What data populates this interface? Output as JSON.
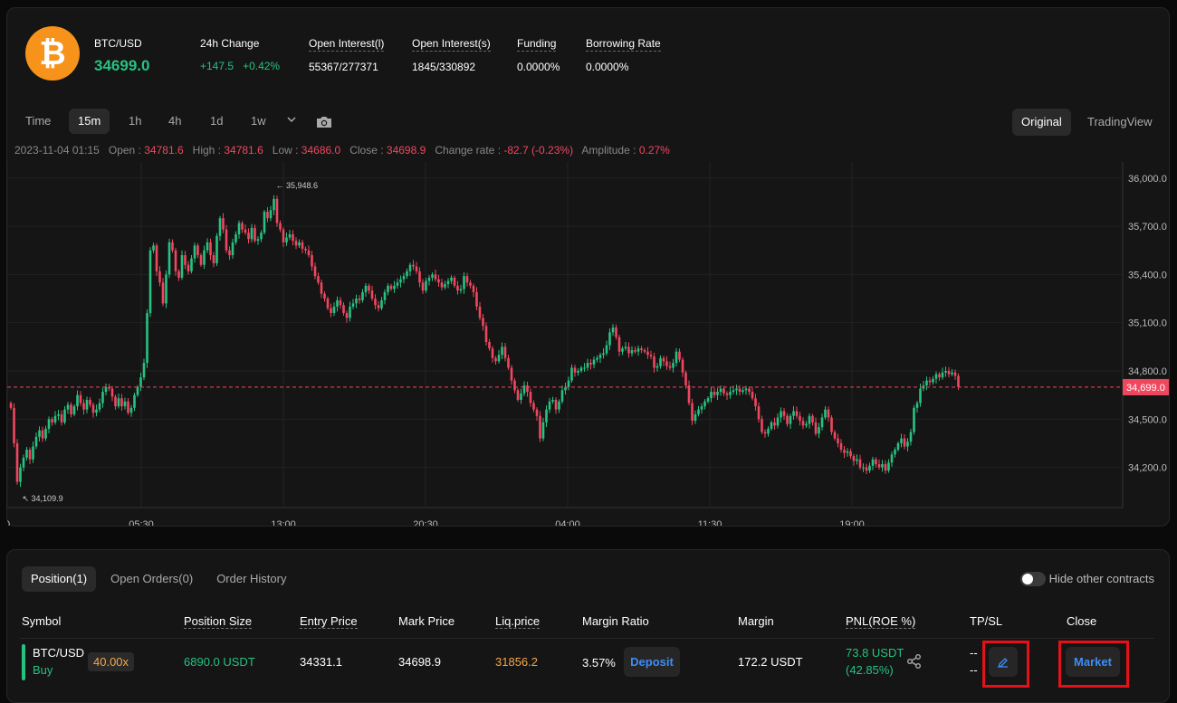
{
  "header": {
    "coin_symbol": "₿",
    "symbol": "BTC/USD",
    "last_price": "34699.0",
    "change_label": "24h Change",
    "change_abs": "+147.5",
    "change_pct": "+0.42%",
    "oi_l_label": "Open Interest(l)",
    "oi_l_value": "55367/277371",
    "oi_s_label": "Open Interest(s)",
    "oi_s_value": "1845/330892",
    "funding_label": "Funding",
    "funding_value": "0.0000%",
    "borrow_label": "Borrowing Rate",
    "borrow_value": "0.0000%"
  },
  "toolbar": {
    "timeframes": [
      "Time",
      "15m",
      "1h",
      "4h",
      "1d",
      "1w"
    ],
    "active": "15m",
    "views": [
      "Original",
      "TradingView"
    ],
    "active_view": "Original"
  },
  "ohlc": {
    "date": "2023-11-04 01:15",
    "open_label": "Open",
    "open": "34781.6",
    "high_label": "High",
    "high": "34781.6",
    "low_label": "Low",
    "low": "34686.0",
    "close_label": "Close",
    "close": "34698.9",
    "change_label": "Change rate",
    "change": "-82.7 (-0.23%)",
    "amp_label": "Amplitude",
    "amp": "0.27%"
  },
  "chart_data": {
    "type": "candlestick",
    "y_ticks": [
      "36,000.0",
      "35,700.0",
      "35,400.0",
      "35,100.0",
      "34,800.0",
      "34,500.0",
      "34,200.0"
    ],
    "x_ticks": [
      "0",
      "05:30",
      "13:00",
      "20:30",
      "04:00",
      "11:30",
      "19:00"
    ],
    "ylim": [
      33950,
      36100
    ],
    "current_price": "34,699.0",
    "high_marker": "35,948.6",
    "low_marker": "34,109.9",
    "closes": [
      34570,
      34350,
      34110,
      34200,
      34260,
      34310,
      34250,
      34330,
      34390,
      34430,
      34380,
      34440,
      34500,
      34480,
      34520,
      34530,
      34480,
      34560,
      34590,
      34530,
      34580,
      34650,
      34600,
      34560,
      34620,
      34590,
      34540,
      34560,
      34600,
      34670,
      34700,
      34690,
      34640,
      34580,
      34630,
      34580,
      34610,
      34540,
      34570,
      34650,
      34700,
      34760,
      34850,
      35160,
      35550,
      35580,
      35420,
      35350,
      35220,
      35400,
      35600,
      35550,
      35420,
      35380,
      35520,
      35460,
      35420,
      35500,
      35580,
      35520,
      35460,
      35550,
      35600,
      35520,
      35470,
      35640,
      35750,
      35680,
      35550,
      35520,
      35600,
      35650,
      35720,
      35680,
      35660,
      35620,
      35690,
      35610,
      35620,
      35660,
      35790,
      35750,
      35800,
      35870,
      35720,
      35680,
      35600,
      35630,
      35650,
      35610,
      35580,
      35600,
      35560,
      35550,
      35520,
      35450,
      35390,
      35350,
      35280,
      35250,
      35190,
      35160,
      35200,
      35240,
      35210,
      35160,
      35130,
      35200,
      35220,
      35250,
      35240,
      35290,
      35330,
      35300,
      35250,
      35210,
      35190,
      35240,
      35290,
      35330,
      35310,
      35330,
      35350,
      35370,
      35390,
      35420,
      35460,
      35450,
      35420,
      35350,
      35300,
      35360,
      35380,
      35400,
      35370,
      35350,
      35320,
      35340,
      35360,
      35380,
      35330,
      35300,
      35310,
      35390,
      35350,
      35330,
      35290,
      35200,
      35130,
      35080,
      34980,
      34940,
      34880,
      34860,
      34900,
      34950,
      34880,
      34820,
      34740,
      34680,
      34620,
      34660,
      34710,
      34670,
      34600,
      34560,
      34520,
      34380,
      34480,
      34560,
      34610,
      34620,
      34560,
      34610,
      34680,
      34700,
      34740,
      34820,
      34790,
      34800,
      34820,
      34820,
      34850,
      34840,
      34870,
      34880,
      34900,
      34910,
      34960,
      35040,
      35070,
      35010,
      34920,
      34940,
      34950,
      34910,
      34930,
      34920,
      34940,
      34930,
      34920,
      34900,
      34890,
      34820,
      34830,
      34880,
      34860,
      34830,
      34820,
      34850,
      34920,
      34870,
      34790,
      34710,
      34600,
      34490,
      34530,
      34560,
      34580,
      34610,
      34630,
      34670,
      34650,
      34670,
      34690,
      34660,
      34650,
      34670,
      34680,
      34690,
      34670,
      34680,
      34690,
      34670,
      34630,
      34580,
      34500,
      34420,
      34410,
      34440,
      34480,
      34460,
      34510,
      34550,
      34520,
      34470,
      34520,
      34550,
      34520,
      34490,
      34460,
      34470,
      34520,
      34480,
      34410,
      34450,
      34510,
      34560,
      34510,
      34420,
      34380,
      34350,
      34310,
      34290,
      34300,
      34270,
      34240,
      34250,
      34200,
      34200,
      34180,
      34210,
      34250,
      34220,
      34200,
      34220,
      34180,
      34230,
      34280,
      34310,
      34350,
      34380,
      34330,
      34360,
      34420,
      34570,
      34600,
      34690,
      34710,
      34740,
      34730,
      34750,
      34780,
      34760,
      34790,
      34800,
      34780,
      34790,
      34770,
      34700
    ]
  },
  "positions": {
    "tabs": [
      "Position(1)",
      "Open Orders(0)",
      "Order History"
    ],
    "active_tab": "Position(1)",
    "hide_label": "Hide other contracts",
    "headers": [
      "Symbol",
      "Position Size",
      "Entry Price",
      "Mark Price",
      "Liq.price",
      "Margin Ratio",
      "Margin",
      "PNL(ROE %)",
      "TP/SL",
      "Close"
    ],
    "row": {
      "symbol": "BTC/USD",
      "side": "Buy",
      "leverage": "40.00x",
      "size": "6890.0 USDT",
      "entry": "34331.1",
      "mark": "34698.9",
      "liq": "31856.2",
      "margin_ratio": "3.57%",
      "deposit": "Deposit",
      "margin": "172.2 USDT",
      "pnl": "73.8 USDT",
      "roe": "(42.85%)",
      "tp": "--",
      "sl": "--",
      "close_btn": "Market"
    }
  }
}
